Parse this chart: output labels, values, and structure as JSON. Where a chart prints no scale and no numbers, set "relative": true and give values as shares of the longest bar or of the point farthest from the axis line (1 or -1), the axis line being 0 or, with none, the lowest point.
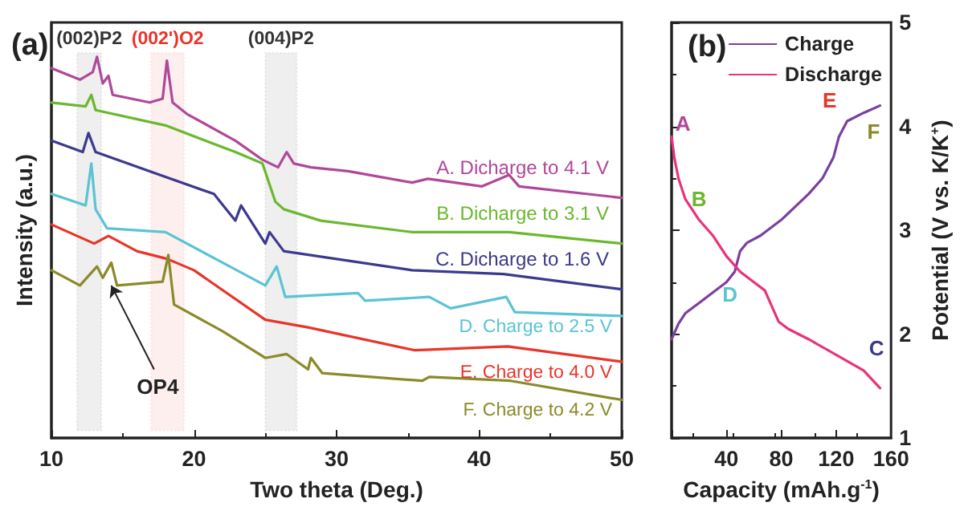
{
  "chart_data": [
    {
      "type": "line",
      "title": "(a)",
      "xlabel": "Two theta (Deg.)",
      "ylabel": "Intensity (a.u.)",
      "relative": true,
      "xlim": [
        10,
        50
      ],
      "xticks": [
        10,
        20,
        30,
        40,
        50
      ],
      "tick_labels": "x",
      "grid": false,
      "legend": false,
      "marker": "none",
      "line_style": "solid",
      "series": [
        {
          "name": "A. Dicharge to 4.1 V",
          "color": "#b0489a",
          "x": [
            10,
            12,
            12.9,
            13.2,
            13.6,
            14.0,
            14.3,
            16.9,
            17.8,
            18.1,
            18.5,
            19.5,
            22.9,
            24.8,
            25.9,
            26.5,
            27,
            28.2,
            30.8,
            35.3,
            36.4,
            40.2,
            42.1,
            42.8,
            50
          ],
          "values": [
            0.97,
            0.94,
            0.96,
            1.0,
            0.93,
            0.95,
            0.9,
            0.88,
            0.89,
            0.99,
            0.88,
            0.85,
            0.78,
            0.73,
            0.71,
            0.75,
            0.72,
            0.71,
            0.7,
            0.67,
            0.68,
            0.66,
            0.69,
            0.66,
            0.63
          ]
        },
        {
          "name": "B. Dicharge to 3.1 V",
          "color": "#6ab82e",
          "x": [
            10,
            12.4,
            12.8,
            13.1,
            18,
            22.9,
            24.8,
            25.7,
            26.3,
            28.9,
            35.3,
            42.1,
            50
          ],
          "values": [
            0.88,
            0.87,
            0.9,
            0.86,
            0.82,
            0.75,
            0.72,
            0.62,
            0.6,
            0.57,
            0.54,
            0.54,
            0.51
          ]
        },
        {
          "name": "C. Dicharge to 1.6 V",
          "color": "#3b3a8c",
          "x": [
            10,
            12.2,
            12.6,
            13.1,
            17.6,
            21.4,
            22.9,
            23.3,
            25,
            25.3,
            26.3,
            35.3,
            41.7,
            50
          ],
          "values": [
            0.78,
            0.75,
            0.8,
            0.75,
            0.69,
            0.64,
            0.57,
            0.61,
            0.51,
            0.54,
            0.49,
            0.44,
            0.43,
            0.39
          ]
        },
        {
          "name": "D. Charge to 2.5 V",
          "color": "#5bc3d3",
          "x": [
            10,
            12.4,
            12.8,
            13.1,
            13.9,
            18,
            22,
            25,
            25.8,
            26.4,
            31.5,
            32,
            36.5,
            38,
            41.9,
            42.5,
            50
          ],
          "values": [
            0.64,
            0.61,
            0.72,
            0.6,
            0.55,
            0.54,
            0.46,
            0.4,
            0.45,
            0.37,
            0.38,
            0.36,
            0.37,
            0.34,
            0.37,
            0.33,
            0.32
          ]
        },
        {
          "name": "E. Charge to 4.0 V",
          "color": "#e8352a",
          "x": [
            10,
            13,
            14,
            16,
            18.1,
            20,
            25,
            28,
            35.5,
            42,
            50
          ],
          "values": [
            0.56,
            0.51,
            0.53,
            0.49,
            0.47,
            0.44,
            0.31,
            0.29,
            0.23,
            0.24,
            0.2
          ]
        },
        {
          "name": "F. Charge to 4.2 V",
          "color": "#8b8a2a",
          "x": [
            10,
            12,
            13.2,
            13.6,
            14.2,
            14.6,
            17.8,
            18.2,
            18.6,
            22,
            25,
            26.5,
            28,
            28.2,
            29,
            36,
            36.5,
            42.2,
            50
          ],
          "values": [
            0.44,
            0.4,
            0.45,
            0.42,
            0.46,
            0.4,
            0.41,
            0.48,
            0.35,
            0.28,
            0.21,
            0.22,
            0.18,
            0.21,
            0.17,
            0.15,
            0.16,
            0.15,
            0.1
          ]
        }
      ],
      "bands": [
        {
          "axis": "x",
          "from": 11.8,
          "to": 13.5,
          "label": "(002)P2",
          "color": "#333333"
        },
        {
          "axis": "x",
          "from": 17,
          "to": 19.3,
          "label": "(002')O2",
          "color": "#e8352a"
        },
        {
          "axis": "x",
          "from": 25,
          "to": 27.2,
          "label": "(004)P2",
          "color": "#333333"
        }
      ],
      "annotations": [
        {
          "text": "OP4",
          "x": 14.2,
          "y": 0.4
        }
      ]
    },
    {
      "type": "line",
      "title": "(b)",
      "xlabel": "Capacity (mAh.g$^{-1}$)",
      "ylabel": "Potential (V vs. K/K$^{+}$)",
      "xlim": [
        0,
        160
      ],
      "xticks": [
        {
          "value": 0,
          "label": null
        },
        40,
        80,
        120,
        160
      ],
      "ylim": [
        1,
        5
      ],
      "yticks": [
        1,
        2,
        3,
        4,
        5
      ],
      "grid": false,
      "legend": "top right",
      "marker": "none",
      "line_style": "solid",
      "series": [
        {
          "name": "Charge",
          "color": "#7b3fa0",
          "x": [
            0,
            5,
            10,
            20,
            30,
            40,
            46,
            50,
            55,
            65,
            80,
            100,
            110,
            118,
            122,
            128,
            140,
            152
          ],
          "values": [
            1.95,
            2.1,
            2.2,
            2.3,
            2.4,
            2.5,
            2.6,
            2.8,
            2.88,
            2.95,
            3.1,
            3.35,
            3.5,
            3.7,
            3.9,
            4.05,
            4.13,
            4.2
          ]
        },
        {
          "name": "Discharge",
          "color": "#e8337a",
          "x": [
            0,
            2,
            5,
            10,
            20,
            30,
            40,
            50,
            60,
            68,
            72,
            78,
            85,
            100,
            120,
            140,
            152
          ],
          "values": [
            3.9,
            3.7,
            3.5,
            3.3,
            3.1,
            2.95,
            2.75,
            2.6,
            2.5,
            2.42,
            2.3,
            2.12,
            2.05,
            1.95,
            1.8,
            1.65,
            1.48
          ]
        }
      ],
      "annotations": [
        {
          "text": "A",
          "x": 0,
          "y": 3.9
        },
        {
          "text": "B",
          "x": 20,
          "y": 3.1
        },
        {
          "text": "C",
          "x": 140,
          "y": 1.65
        },
        {
          "text": "D",
          "x": 46,
          "y": 2.6
        },
        {
          "text": "E",
          "x": 128,
          "y": 4.05
        },
        {
          "text": "F",
          "x": 152,
          "y": 4.2
        }
      ]
    }
  ]
}
